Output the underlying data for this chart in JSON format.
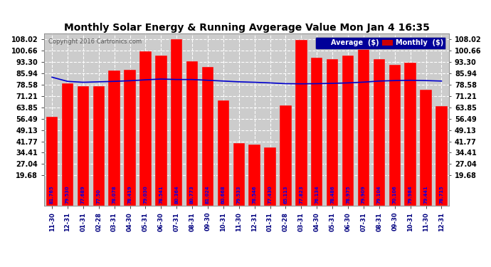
{
  "title": "Monthly Solar Energy & Running Avgerage Value Mon Jan 4 16:35",
  "copyright": "Copyright 2016 Cartronics.com",
  "categories": [
    "11-30",
    "12-31",
    "01-31",
    "02-28",
    "03-31",
    "04-30",
    "05-31",
    "06-30",
    "07-31",
    "08-31",
    "09-30",
    "10-31",
    "11-30",
    "12-31",
    "01-31",
    "02-28",
    "03-31",
    "04-30",
    "05-31",
    "06-30",
    "07-31",
    "08-31",
    "09-30",
    "10-31",
    "11-30",
    "12-31"
  ],
  "bar_heights": [
    57.65,
    79.53,
    77.69,
    77.5,
    88.0,
    88.5,
    100.3,
    97.41,
    108.02,
    93.84,
    90.02,
    68.5,
    40.5,
    39.5,
    38.0,
    65.11,
    107.82,
    96.13,
    95.49,
    97.58,
    108.02,
    95.1,
    91.75,
    93.06,
    75.5,
    64.5
  ],
  "bar_labels": [
    "81.765",
    "79.530",
    "77.689",
    "77.50",
    "78.078",
    "78.419",
    "79.030",
    "78.541",
    "80.364",
    "80.773",
    "81.024",
    "60.668",
    "79.533",
    "78.546",
    "77.430",
    "65.113",
    "77.823",
    "76.134",
    "78.486",
    "78.975",
    "79.909",
    "79.104",
    "70.106",
    "79.984",
    "79.441",
    "78.715"
  ],
  "avg_line": [
    83.5,
    80.8,
    80.2,
    80.5,
    80.8,
    81.2,
    81.8,
    82.3,
    82.0,
    82.0,
    81.5,
    81.0,
    80.5,
    80.2,
    79.8,
    79.3,
    79.2,
    79.3,
    79.5,
    79.8,
    80.3,
    81.0,
    81.3,
    81.5,
    81.3,
    81.0
  ],
  "ytick_values": [
    19.68,
    27.04,
    34.41,
    41.77,
    49.13,
    56.49,
    63.85,
    71.21,
    78.58,
    85.94,
    93.3,
    100.66,
    108.02
  ],
  "ytick_labels": [
    "19.68",
    "27.04",
    "34.41",
    "41.77",
    "49.13",
    "56.49",
    "63.85",
    "71.21",
    "78.58",
    "85.94",
    "93.30",
    "100.66",
    "108.02"
  ],
  "bar_color": "#ff0000",
  "avg_color": "#0000cc",
  "label_color": "#0000ee",
  "bg_color": "#ffffff",
  "plot_bg": "#cccccc",
  "grid_color": "#ffffff",
  "legend_avg_bg": "#000099",
  "legend_monthly_bg": "#cc0000",
  "ymin": 0.0,
  "ymax": 108.02
}
